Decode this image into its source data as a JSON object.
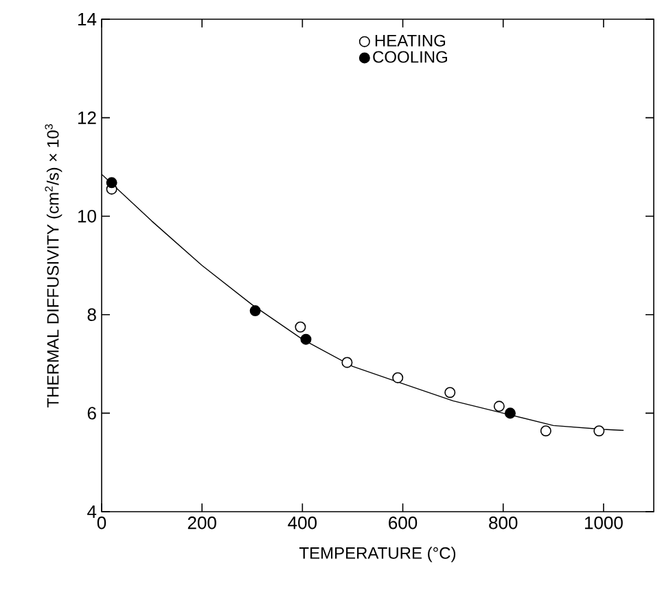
{
  "chart_data": {
    "type": "scatter",
    "xlabel": "TEMPERATURE (°C)",
    "ylabel": "THERMAL DIFFUSIVITY (cm$^{2}$/s) × 10$^{3}$",
    "xlim": [
      0,
      1100
    ],
    "ylim": [
      4,
      14
    ],
    "xticks": [
      0,
      200,
      400,
      600,
      800,
      1000
    ],
    "yticks": [
      4,
      6,
      8,
      10,
      12,
      14
    ],
    "grid": false,
    "legend": "top",
    "marker": "circle",
    "series": [
      {
        "name": "HEATING",
        "color": "#ffffff",
        "x": [
          20,
          396,
          489,
          590,
          694,
          792,
          885,
          991
        ],
        "values": [
          10.55,
          7.75,
          7.03,
          6.72,
          6.42,
          6.14,
          5.64,
          5.64
        ]
      },
      {
        "name": "COOLING",
        "color": "#000000",
        "x": [
          20,
          306,
          407,
          814
        ],
        "values": [
          10.68,
          8.08,
          7.5,
          6.0
        ]
      },
      {
        "type": "line",
        "color": "#000000",
        "marker": "none",
        "line_style": "solid",
        "x": [
          0,
          100,
          200,
          300,
          400,
          500,
          600,
          700,
          800,
          900,
          1000,
          1040
        ],
        "values": [
          10.85,
          9.9,
          9.0,
          8.2,
          7.5,
          6.95,
          6.6,
          6.25,
          6.0,
          5.75,
          5.67,
          5.65
        ]
      }
    ]
  }
}
